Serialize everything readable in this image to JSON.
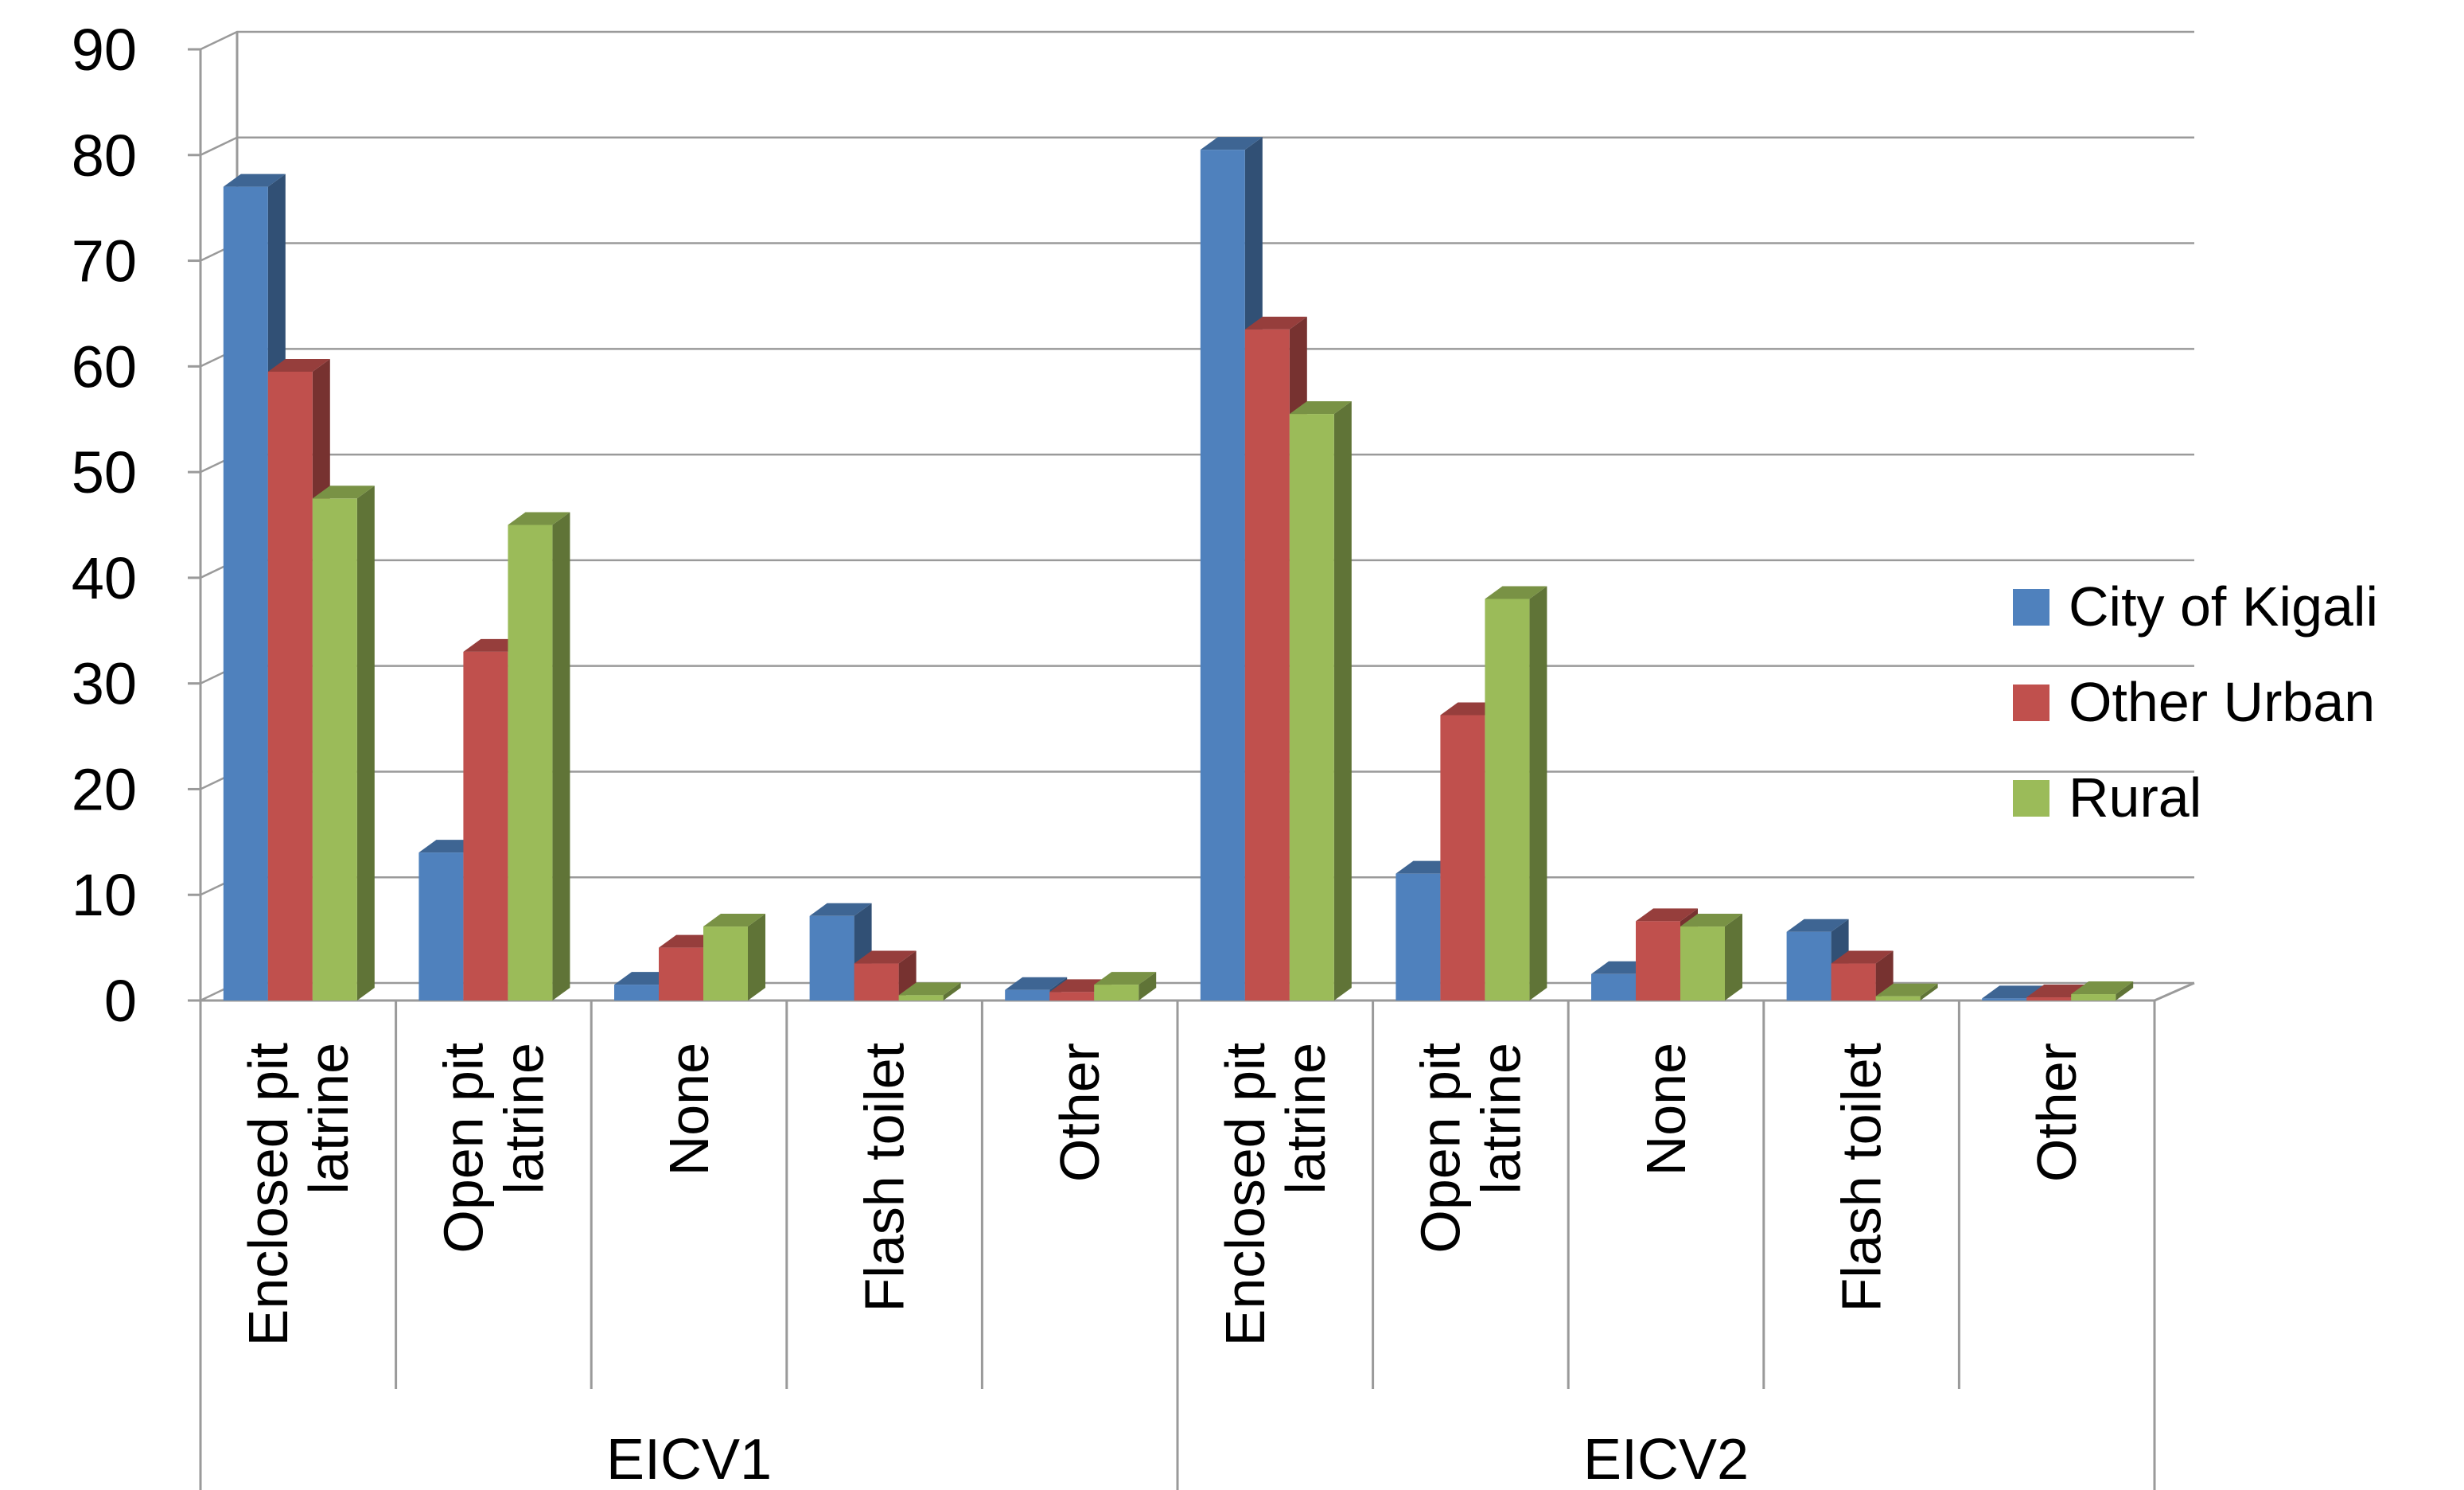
{
  "chart_data": {
    "type": "bar",
    "title": "",
    "xlabel": "",
    "ylabel": "",
    "ylim": [
      0,
      90
    ],
    "yticks": [
      0,
      10,
      20,
      30,
      40,
      50,
      60,
      70,
      80,
      90
    ],
    "grid": true,
    "legend_position": "right",
    "groups": [
      {
        "name": "EICV1",
        "categories": [
          "Enclosed pit latrine",
          "Open pit latrine",
          "None",
          "Flash toilet",
          "Other"
        ]
      },
      {
        "name": "EICV2",
        "categories": [
          "Enclosed pit latrine",
          "Open pit latrine",
          "None",
          "Flash toilet",
          "Other"
        ]
      }
    ],
    "category_lines": {
      "Enclosed pit latrine": [
        "Enclosed pit",
        "latrine"
      ],
      "Open pit latrine": [
        "Open pit",
        "latrine"
      ],
      "None": [
        "None"
      ],
      "Flash toilet": [
        "Flash toilet"
      ],
      "Other": [
        "Other"
      ]
    },
    "series": [
      {
        "name": "City of Kigali",
        "color": "#4f81bd",
        "values": [
          77,
          14,
          1.5,
          8,
          1,
          80.5,
          12,
          2.5,
          6.5,
          0.2
        ]
      },
      {
        "name": "Other Urban",
        "color": "#c0504d",
        "values": [
          59.5,
          33,
          5,
          3.5,
          0.8,
          63.5,
          27,
          7.5,
          3.5,
          0.3
        ]
      },
      {
        "name": "Rural",
        "color": "#9bbb59",
        "values": [
          47.5,
          45,
          7,
          0.5,
          1.5,
          55.5,
          38,
          7,
          0.4,
          0.6
        ]
      }
    ]
  }
}
